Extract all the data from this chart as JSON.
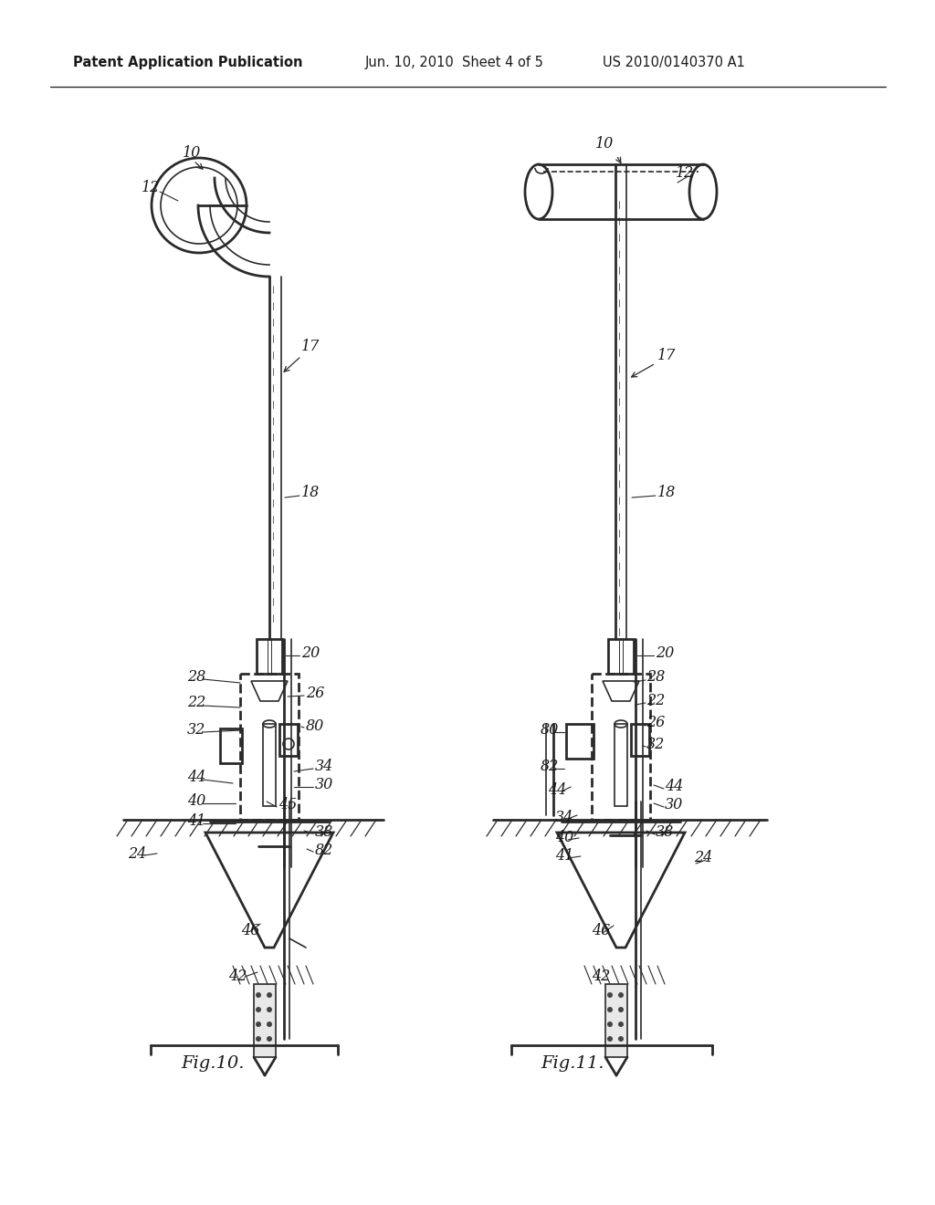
{
  "background_color": "#ffffff",
  "line_color": "#2a2a2a",
  "text_color": "#1a1a1a",
  "header_text": "Patent Application Publication",
  "header_date": "Jun. 10, 2010  Sheet 4 of 5",
  "header_patent": "US 2010/0140370 A1"
}
